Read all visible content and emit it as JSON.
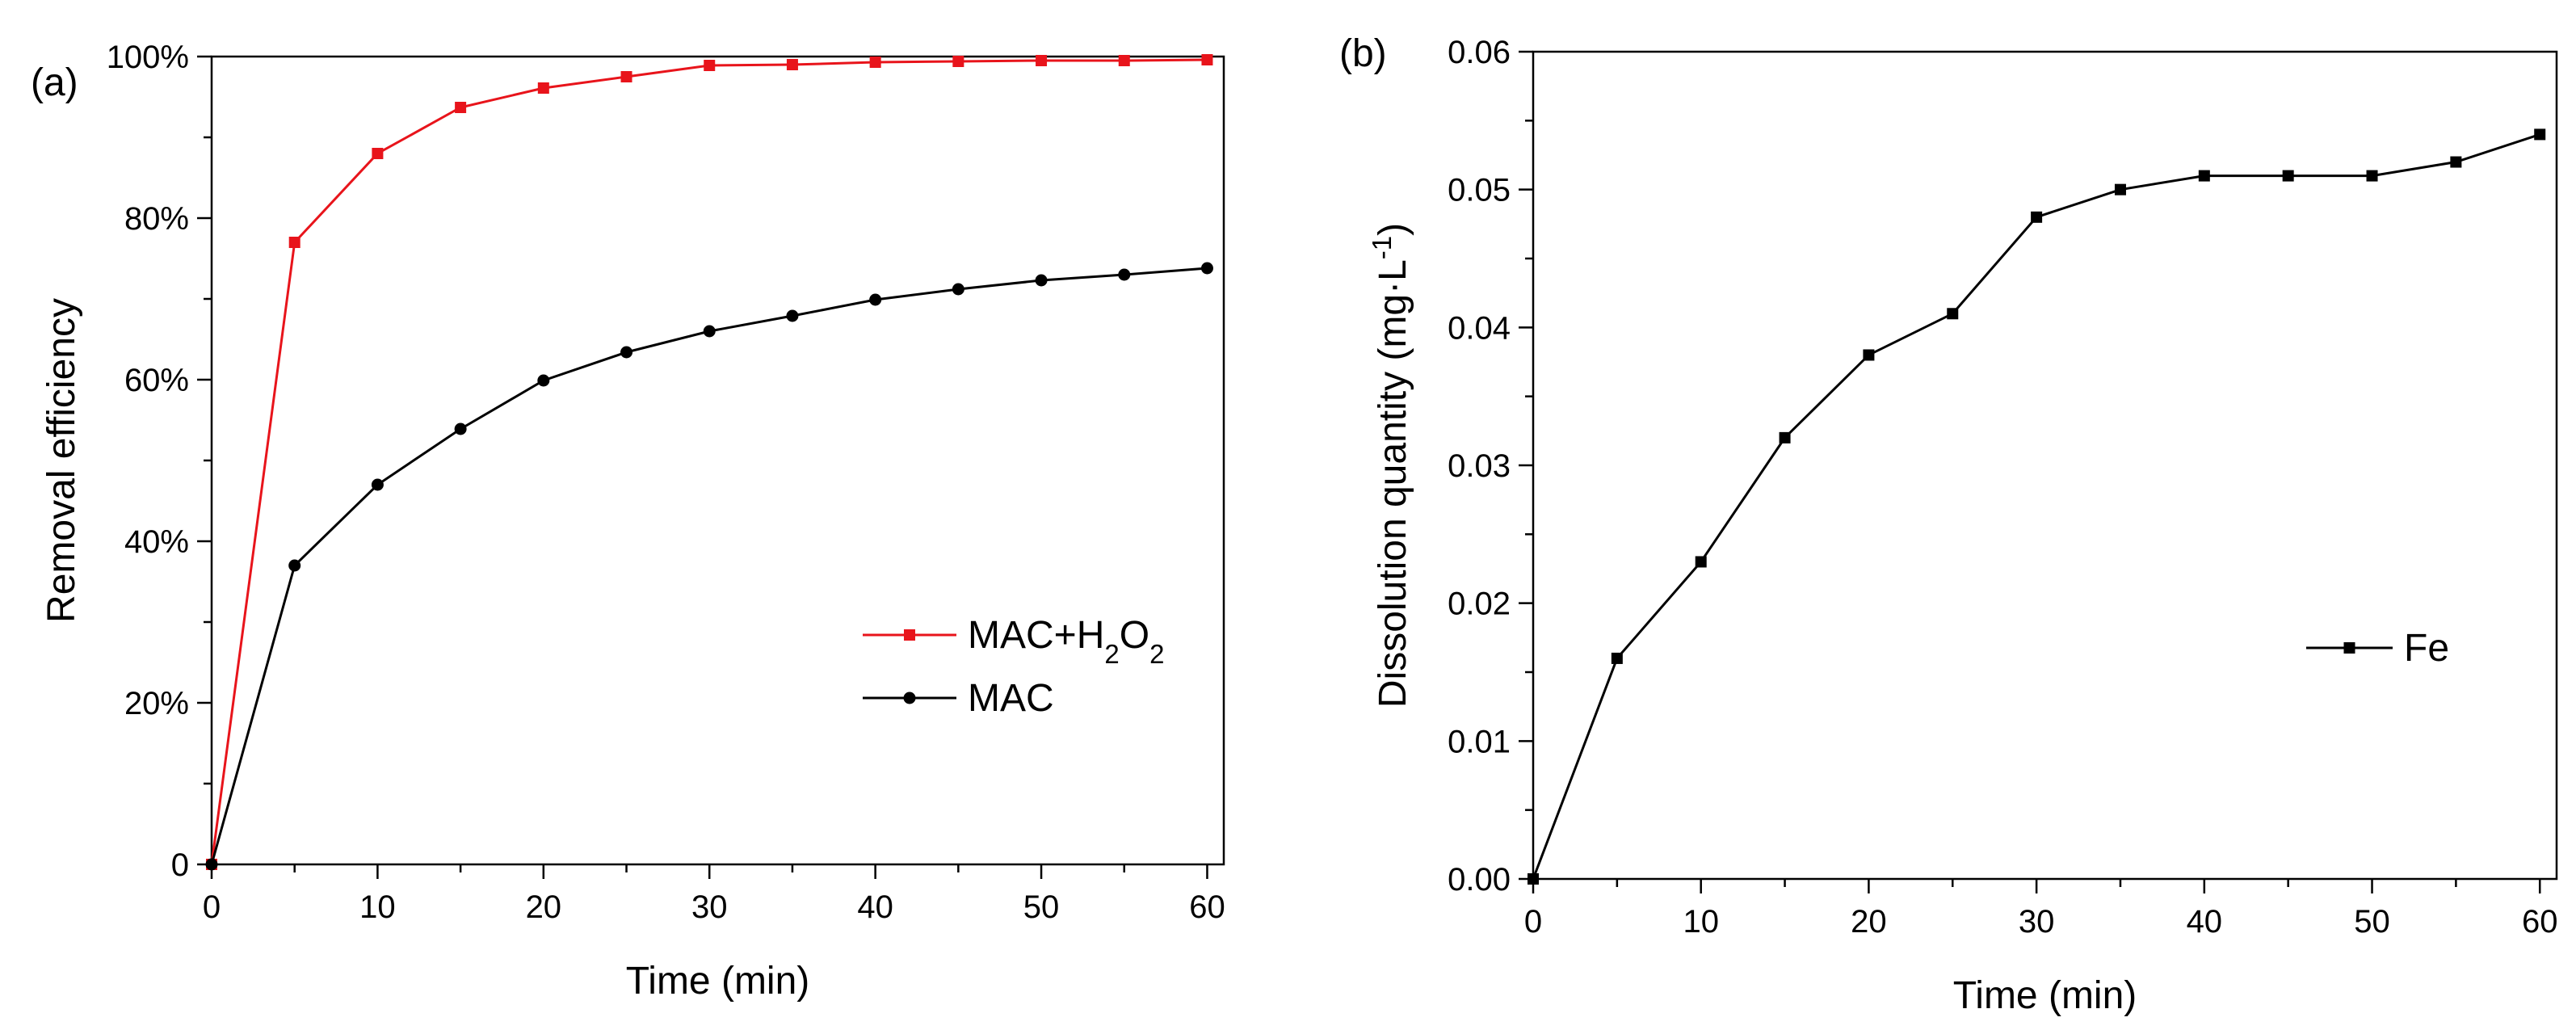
{
  "chart_data": [
    {
      "type": "line",
      "panel_label": "(a)",
      "xlabel": "Time (min)",
      "ylabel": "Removal efficiency",
      "xlim": [
        0,
        61
      ],
      "ylim": [
        0,
        100
      ],
      "x_ticks": [
        0,
        10,
        20,
        30,
        40,
        50,
        60
      ],
      "x_tick_labels": [
        "0",
        "10",
        "20",
        "30",
        "40",
        "50",
        "60"
      ],
      "y_ticks": [
        0,
        20,
        40,
        60,
        80,
        100
      ],
      "y_tick_labels": [
        "0",
        "20%",
        "40%",
        "60%",
        "80%",
        "100%"
      ],
      "legend_position": "center-right",
      "series": [
        {
          "name": "MAC+H2O2",
          "legend_parts": [
            {
              "t": "MAC+H"
            },
            {
              "t": "2",
              "sub": true
            },
            {
              "t": "O"
            },
            {
              "t": "2",
              "sub": true
            }
          ],
          "color": "#e8141b",
          "marker": "square",
          "x": [
            0,
            5,
            10,
            15,
            20,
            25,
            30,
            35,
            40,
            45,
            50,
            55,
            60
          ],
          "y": [
            0,
            77,
            88,
            93.7,
            96.1,
            97.5,
            98.9,
            99.0,
            99.3,
            99.4,
            99.5,
            99.5,
            99.6
          ]
        },
        {
          "name": "MAC",
          "legend_parts": [
            {
              "t": "MAC"
            }
          ],
          "color": "#000000",
          "marker": "circle",
          "x": [
            0,
            5,
            10,
            15,
            20,
            25,
            30,
            35,
            40,
            45,
            50,
            55,
            60
          ],
          "y": [
            0,
            37,
            47,
            53.9,
            59.9,
            63.4,
            66.0,
            67.9,
            69.9,
            71.2,
            72.3,
            73.0,
            73.8
          ]
        }
      ]
    },
    {
      "type": "line",
      "panel_label": "(b)",
      "xlabel": "Time (min)",
      "ylabel_parts": [
        {
          "t": "Dissolution quantity (mg·L"
        },
        {
          "t": "-1",
          "sup": true
        },
        {
          "t": ")"
        }
      ],
      "xlim": [
        0,
        61
      ],
      "ylim": [
        0,
        0.06
      ],
      "x_ticks": [
        0,
        10,
        20,
        30,
        40,
        50,
        60
      ],
      "x_tick_labels": [
        "0",
        "10",
        "20",
        "30",
        "40",
        "50",
        "60"
      ],
      "y_ticks": [
        0,
        0.01,
        0.02,
        0.03,
        0.04,
        0.05,
        0.06
      ],
      "y_tick_labels": [
        "0.00",
        "0.01",
        "0.02",
        "0.03",
        "0.04",
        "0.05",
        "0.06"
      ],
      "legend_position": "center-right",
      "series": [
        {
          "name": "Fe",
          "legend_parts": [
            {
              "t": "Fe"
            }
          ],
          "color": "#000000",
          "marker": "square",
          "x": [
            0,
            5,
            10,
            15,
            20,
            25,
            30,
            35,
            40,
            45,
            50,
            55,
            60
          ],
          "y": [
            0,
            0.016,
            0.023,
            0.032,
            0.038,
            0.041,
            0.048,
            0.05,
            0.051,
            0.051,
            0.051,
            0.052,
            0.054
          ]
        }
      ]
    }
  ]
}
